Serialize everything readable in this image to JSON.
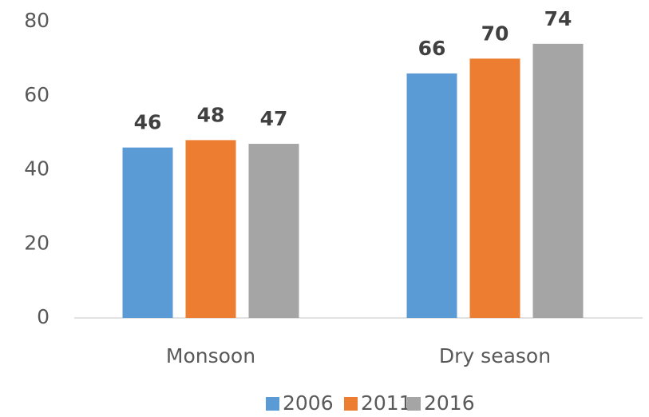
{
  "chart_data": {
    "type": "bar",
    "categories": [
      "Monsoon",
      "Dry season"
    ],
    "series": [
      {
        "name": "2006",
        "color": "#5b9bd5",
        "values": [
          46,
          66
        ]
      },
      {
        "name": "2011",
        "color": "#ed7d31",
        "values": [
          48,
          70
        ]
      },
      {
        "name": "2016",
        "color": "#a5a5a5",
        "values": [
          47,
          74
        ]
      }
    ],
    "ylim": [
      0,
      80
    ],
    "yticks": [
      0,
      20,
      40,
      60,
      80
    ],
    "grid": false,
    "legend": "bottom",
    "data_labels": true
  }
}
